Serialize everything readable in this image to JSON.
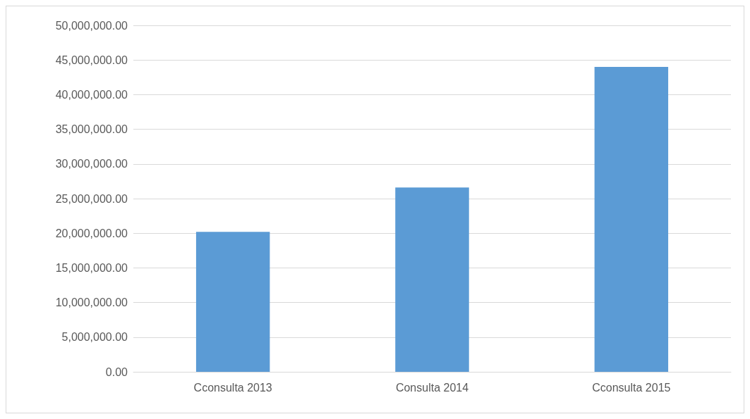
{
  "chart_data": {
    "type": "bar",
    "categories": [
      "Cconsulta 2013",
      "Consulta 2014",
      "Cconsulta 2015"
    ],
    "values": [
      20200000,
      26600000,
      44000000
    ],
    "color": "#5b9bd5",
    "ylim": [
      0,
      50000000
    ],
    "yticks": [
      {
        "value": 0,
        "label": "0.00"
      },
      {
        "value": 5000000,
        "label": "5,000,000.00"
      },
      {
        "value": 10000000,
        "label": "10,000,000.00"
      },
      {
        "value": 15000000,
        "label": "15,000,000.00"
      },
      {
        "value": 20000000,
        "label": "20,000,000.00"
      },
      {
        "value": 25000000,
        "label": "25,000,000.00"
      },
      {
        "value": 30000000,
        "label": "30,000,000.00"
      },
      {
        "value": 35000000,
        "label": "35,000,000.00"
      },
      {
        "value": 40000000,
        "label": "40,000,000.00"
      },
      {
        "value": 45000000,
        "label": "45,000,000.00"
      },
      {
        "value": 50000000,
        "label": "50,000,000.00"
      }
    ],
    "grid": "y"
  }
}
